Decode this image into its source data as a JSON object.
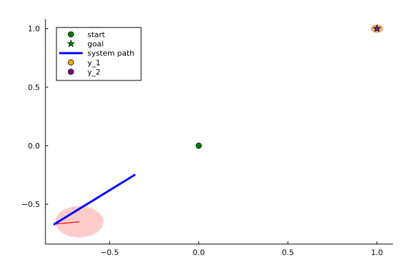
{
  "chart_data": {
    "type": "scatter",
    "title": "",
    "xlabel": "",
    "ylabel": "",
    "xlim": [
      -0.86,
      1.09
    ],
    "ylim": [
      -0.84,
      1.08
    ],
    "grid": false,
    "legend_position": "top-left",
    "x_ticks": [
      {
        "value": -0.5,
        "label": "−0.5"
      },
      {
        "value": 0.0,
        "label": "0.0"
      },
      {
        "value": 0.5,
        "label": "0.5"
      },
      {
        "value": 1.0,
        "label": "1.0"
      }
    ],
    "y_ticks": [
      {
        "value": -0.5,
        "label": "−0.5"
      },
      {
        "value": 0.0,
        "label": "0.0"
      },
      {
        "value": 0.5,
        "label": "0.5"
      },
      {
        "value": 1.0,
        "label": "1.0"
      }
    ],
    "series": [
      {
        "name": "start",
        "kind": "marker",
        "marker": "circle",
        "color": "#008000",
        "points": [
          [
            0.0,
            0.0
          ]
        ]
      },
      {
        "name": "goal",
        "kind": "marker",
        "marker": "star",
        "color": "#008000",
        "points": [
          [
            1.0,
            1.0
          ]
        ]
      },
      {
        "name": "system path",
        "kind": "line",
        "color": "#0000ff",
        "points": [
          [
            -0.36,
            -0.25
          ],
          [
            -0.81,
            -0.67
          ]
        ]
      },
      {
        "name": "y_1",
        "kind": "marker",
        "marker": "circle",
        "color": "#ffa500",
        "points": [
          [
            1.0,
            1.0
          ]
        ]
      },
      {
        "name": "y_2",
        "kind": "marker",
        "marker": "circle",
        "color": "#800080",
        "points": [
          [
            1.0,
            1.0
          ]
        ]
      }
    ],
    "annotations": {
      "obstacle": {
        "center": [
          -0.67,
          -0.65
        ],
        "radius_x": 0.135,
        "color": "#ff0000",
        "opacity": 0.2
      },
      "heading_line": {
        "points": [
          [
            -0.81,
            -0.67
          ],
          [
            -0.67,
            -0.65
          ]
        ],
        "color": "#ff0000"
      },
      "goal_halo": {
        "center": [
          1.0,
          1.0
        ],
        "color": "#e6a060",
        "opacity": 0.85
      }
    }
  }
}
